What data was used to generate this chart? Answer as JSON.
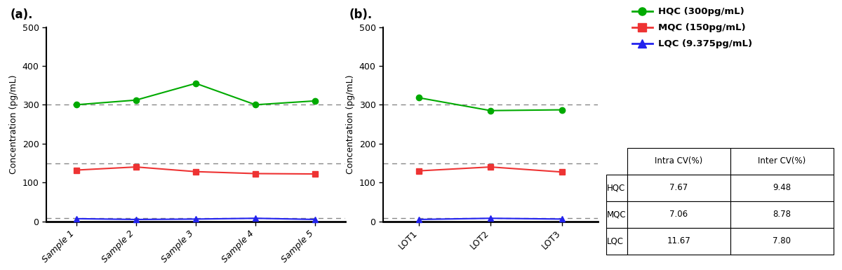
{
  "panel_a": {
    "label": "(a).",
    "x_labels": [
      "Sample 1",
      "Sample 2",
      "Sample 3",
      "Sample 4",
      "Sample 5"
    ],
    "hqc": [
      300,
      312,
      355,
      300,
      310
    ],
    "mqc": [
      132,
      140,
      128,
      123,
      122
    ],
    "lqc": [
      7,
      5,
      6,
      8,
      5
    ],
    "hqc_ref": 300,
    "mqc_ref": 150,
    "lqc_ref": 9.375,
    "ylabel": "Concentration (pg/mL)",
    "ylim": [
      0,
      500
    ],
    "yticks": [
      0,
      100,
      200,
      300,
      400,
      500
    ]
  },
  "panel_b": {
    "label": "(b).",
    "x_labels": [
      "LOT1",
      "LOT2",
      "LOT3"
    ],
    "hqc": [
      318,
      285,
      287
    ],
    "mqc": [
      130,
      140,
      127
    ],
    "lqc": [
      5,
      8,
      6
    ],
    "hqc_ref": 300,
    "mqc_ref": 150,
    "lqc_ref": 9.375,
    "ylabel": "Concentration (pg/mL)",
    "ylim": [
      0,
      500
    ],
    "yticks": [
      0,
      100,
      200,
      300,
      400,
      500
    ]
  },
  "legend": {
    "hqc_label": "HQC (300pg/mL)",
    "mqc_label": "MQC (150pg/mL)",
    "lqc_label": "LQC (9.375pg/mL)",
    "hqc_color": "#00AA00",
    "mqc_color": "#EE3333",
    "lqc_color": "#2222EE"
  },
  "table": {
    "col_labels": [
      "Intra CV(%)",
      "Inter CV(%)"
    ],
    "row_labels": [
      "HQC",
      "MQC",
      "LQC"
    ],
    "values": [
      [
        "7.67",
        "9.48"
      ],
      [
        "7.06",
        "8.78"
      ],
      [
        "11.67",
        "7.80"
      ]
    ]
  },
  "dashed_color": "#888888",
  "background_color": "#ffffff"
}
